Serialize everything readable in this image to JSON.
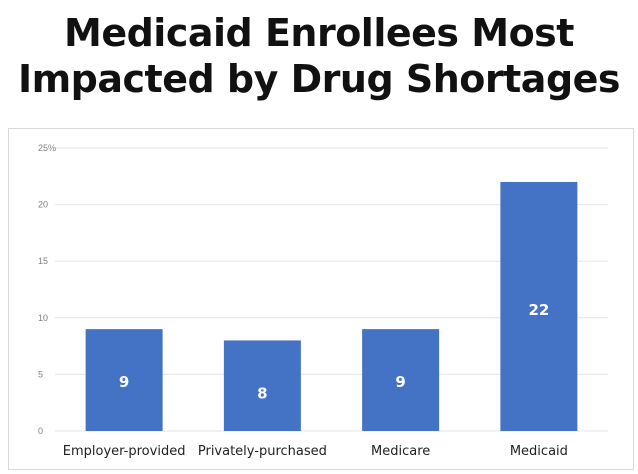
{
  "chart_data": {
    "type": "bar",
    "title": "Medicaid Enrollees Most Impacted by Drug Shortages",
    "title_lines": [
      "Medicaid Enrollees Most",
      "Impacted by Drug Shortages"
    ],
    "categories": [
      "Employer-provided",
      "Privately-purchased",
      "Medicare",
      "Medicaid"
    ],
    "values": [
      9,
      8,
      9,
      22
    ],
    "data_labels": [
      "9",
      "8",
      "9",
      "22"
    ],
    "yticks": [
      "0",
      "5",
      "10",
      "15",
      "20",
      "25%"
    ],
    "ytick_values": [
      0,
      5,
      10,
      15,
      20,
      25
    ],
    "ylim": [
      0,
      25
    ],
    "xlabel": "",
    "ylabel": "",
    "grid": true,
    "bar_color": "#4472c4",
    "grid_color": "#e6e6e6"
  }
}
